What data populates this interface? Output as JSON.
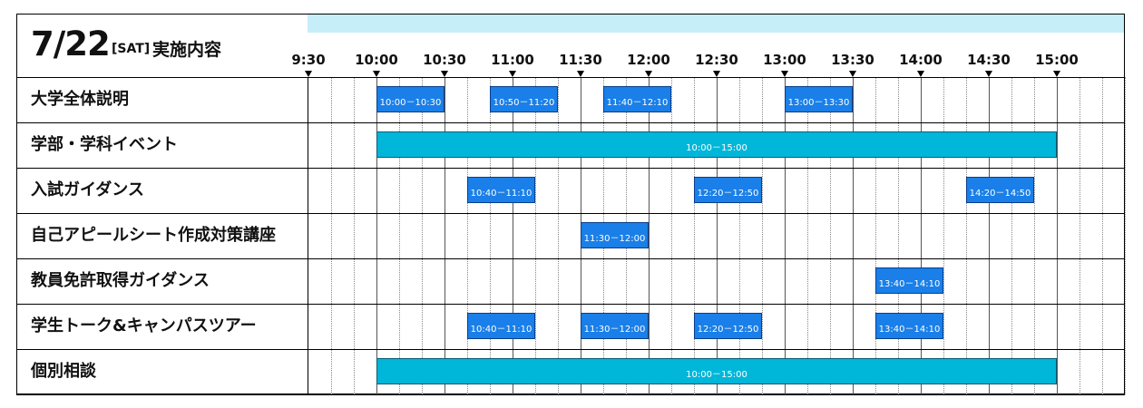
{
  "header": {
    "date": "7/22",
    "day": "[SAT]",
    "caption": "実施内容"
  },
  "times": [
    "9:30",
    "10:00",
    "10:30",
    "11:00",
    "11:30",
    "12:00",
    "12:30",
    "13:00",
    "13:30",
    "14:00",
    "14:30",
    "15:00"
  ],
  "rows": [
    {
      "label": "大学全体説明",
      "sessions": [
        "10:00－10:30",
        "10:50－11:20",
        "11:40－12:10",
        "13:00－13:30"
      ]
    },
    {
      "label": "学部・学科イベント",
      "sessions": [
        "10:00－15:00"
      ]
    },
    {
      "label": "入試ガイダンス",
      "sessions": [
        "10:40－11:10",
        "12:20－12:50",
        "14:20－14:50"
      ]
    },
    {
      "label": "自己アピールシート作成対策講座",
      "sessions": [
        "11:30－12:00"
      ]
    },
    {
      "label": "教員免許取得ガイダンス",
      "sessions": [
        "13:40－14:10"
      ]
    },
    {
      "label": "学生トーク&キャンパスツアー",
      "sessions": [
        "10:40－11:10",
        "11:30－12:00",
        "12:20－12:50",
        "13:40－14:10"
      ]
    },
    {
      "label": "個別相談",
      "sessions": [
        "10:00－15:00"
      ]
    }
  ],
  "colors": {
    "session": "#1a7fe8",
    "all_day": "#00b6d9",
    "band": "#c6eef8"
  }
}
